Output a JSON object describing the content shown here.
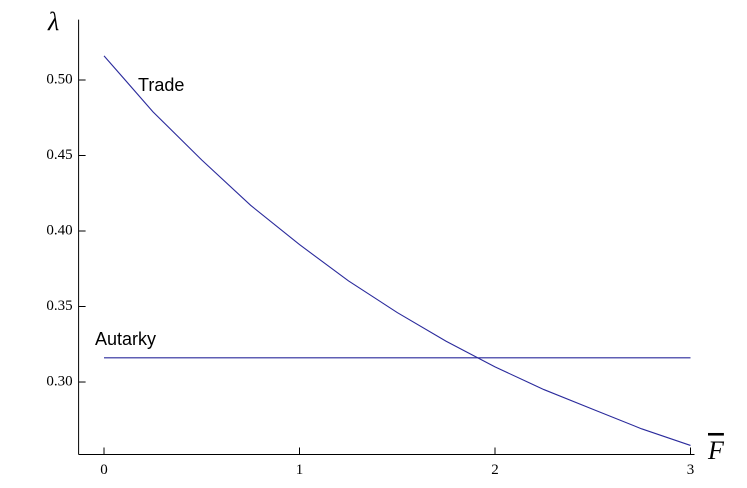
{
  "chart_data": {
    "type": "line",
    "y_label": "λ",
    "x_label": "F",
    "x": [
      0,
      0.25,
      0.5,
      0.75,
      1,
      1.25,
      1.5,
      1.75,
      2,
      2.25,
      2.5,
      2.75,
      3
    ],
    "series": [
      {
        "name": "Trade",
        "color": "#2a2a9c",
        "values": [
          0.516,
          0.479,
          0.447,
          0.417,
          0.391,
          0.367,
          0.346,
          0.327,
          0.31,
          0.295,
          0.282,
          0.269,
          0.258
        ]
      },
      {
        "name": "Autarky",
        "color": "#2a2a9c",
        "values": [
          0.316,
          0.316,
          0.316,
          0.316,
          0.316,
          0.316,
          0.316,
          0.316,
          0.316,
          0.316,
          0.316,
          0.316,
          0.316
        ]
      }
    ],
    "xlim": [
      -0.13,
      3
    ],
    "ylim": [
      0.252,
      0.54
    ],
    "xticks": [
      0,
      1,
      2,
      3
    ],
    "yticks": [
      {
        "value": 0.5,
        "label": "0.50"
      },
      0.45,
      {
        "value": 0.4,
        "label": "0.40"
      },
      0.35,
      {
        "value": 0.3,
        "label": "0.30"
      }
    ]
  }
}
